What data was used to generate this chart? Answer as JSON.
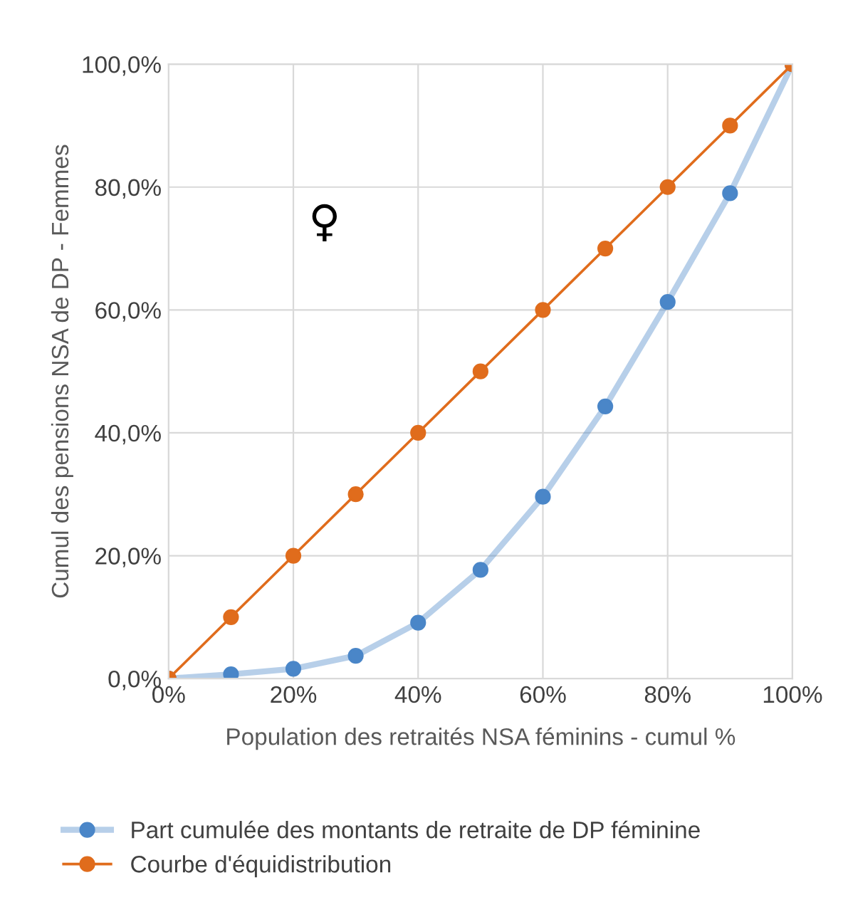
{
  "chart_data": {
    "type": "line",
    "xlabel": "Population des retraités NSA féminins - cumul %",
    "ylabel": "Cumul des pensions NSA de DP - Femmes",
    "annotations": [
      "♀"
    ],
    "x": [
      0,
      10,
      20,
      30,
      40,
      50,
      60,
      70,
      80,
      90,
      100
    ],
    "series": [
      {
        "name": "Part cumulée des montants de retraite de DP féminine",
        "color": "#4a86c8",
        "values": [
          0,
          0.7,
          1.6,
          3.7,
          9.1,
          17.7,
          29.6,
          44.3,
          61.3,
          79.0,
          100
        ]
      },
      {
        "name": "Courbe d'équidistribution",
        "color": "#e06c1c",
        "values": [
          0,
          10,
          20,
          30,
          40,
          50,
          60,
          70,
          80,
          90,
          100
        ]
      }
    ],
    "xlim": [
      0,
      100
    ],
    "ylim": [
      0,
      100
    ],
    "xticks": [
      {
        "value": 0,
        "label": "0%"
      },
      {
        "value": 20,
        "label": "20%"
      },
      {
        "value": 40,
        "label": "40%"
      },
      {
        "value": 60,
        "label": "60%"
      },
      {
        "value": 80,
        "label": "80%"
      },
      {
        "value": 100,
        "label": "100%"
      }
    ],
    "yticks": [
      {
        "value": 0,
        "label": "0,0%"
      },
      {
        "value": 20,
        "label": "20,0%"
      },
      {
        "value": 40,
        "label": "40,0%"
      },
      {
        "value": 60,
        "label": "60,0%"
      },
      {
        "value": 80,
        "label": "80,0%"
      },
      {
        "value": 100,
        "label": "100,0%"
      }
    ],
    "grid": true,
    "legend": "bottom",
    "marker": "circle"
  }
}
